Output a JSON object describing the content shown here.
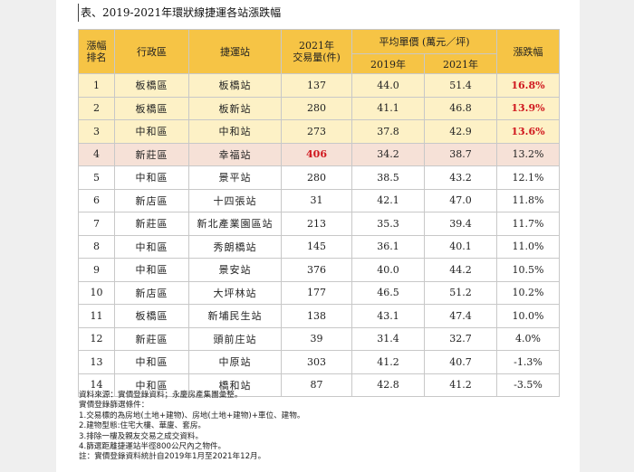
{
  "title": "表、2019-2021年環狀線捷運各站漲跌幅",
  "headers": {
    "rank": "漲幅\n排名",
    "district": "行政區",
    "station": "捷運站",
    "volume": "2021年\n交易量(件)",
    "avg_price": "平均單價 (萬元／坪)",
    "y2019": "2019年",
    "y2021": "2021年",
    "change": "漲跌幅"
  },
  "rows": [
    {
      "rank": "1",
      "district": "板橋區",
      "station": "板橋站",
      "volume": "137",
      "p2019": "44.0",
      "p2021": "51.4",
      "change": "16.8%"
    },
    {
      "rank": "2",
      "district": "板橋區",
      "station": "板新站",
      "volume": "280",
      "p2019": "41.1",
      "p2021": "46.8",
      "change": "13.9%"
    },
    {
      "rank": "3",
      "district": "中和區",
      "station": "中和站",
      "volume": "273",
      "p2019": "37.8",
      "p2021": "42.9",
      "change": "13.6%"
    },
    {
      "rank": "4",
      "district": "新莊區",
      "station": "幸福站",
      "volume": "406",
      "p2019": "34.2",
      "p2021": "38.7",
      "change": "13.2%"
    },
    {
      "rank": "5",
      "district": "中和區",
      "station": "景平站",
      "volume": "280",
      "p2019": "38.5",
      "p2021": "43.2",
      "change": "12.1%"
    },
    {
      "rank": "6",
      "district": "新店區",
      "station": "十四張站",
      "volume": "31",
      "p2019": "42.1",
      "p2021": "47.0",
      "change": "11.8%"
    },
    {
      "rank": "7",
      "district": "新莊區",
      "station": "新北產業園區站",
      "volume": "213",
      "p2019": "35.3",
      "p2021": "39.4",
      "change": "11.7%"
    },
    {
      "rank": "8",
      "district": "中和區",
      "station": "秀朗橋站",
      "volume": "145",
      "p2019": "36.1",
      "p2021": "40.1",
      "change": "11.0%"
    },
    {
      "rank": "9",
      "district": "中和區",
      "station": "景安站",
      "volume": "376",
      "p2019": "40.0",
      "p2021": "44.2",
      "change": "10.5%"
    },
    {
      "rank": "10",
      "district": "新店區",
      "station": "大坪林站",
      "volume": "177",
      "p2019": "46.5",
      "p2021": "51.2",
      "change": "10.2%"
    },
    {
      "rank": "11",
      "district": "板橋區",
      "station": "新埔民生站",
      "volume": "138",
      "p2019": "43.1",
      "p2021": "47.4",
      "change": "10.0%"
    },
    {
      "rank": "12",
      "district": "新莊區",
      "station": "頭前庄站",
      "volume": "39",
      "p2019": "31.4",
      "p2021": "32.7",
      "change": "4.0%"
    },
    {
      "rank": "13",
      "district": "中和區",
      "station": "中原站",
      "volume": "303",
      "p2019": "41.2",
      "p2021": "40.7",
      "change": "-1.3%"
    },
    {
      "rank": "14",
      "district": "中和區",
      "station": "橋和站",
      "volume": "87",
      "p2019": "42.8",
      "p2021": "41.2",
      "change": "-3.5%"
    }
  ],
  "highlight": {
    "yellow_rows": [
      0,
      1,
      2
    ],
    "pink_rows": [
      3
    ],
    "red_change_rows": [
      0,
      1,
      2
    ],
    "red_volume_rows": [
      3
    ]
  },
  "notes": [
    "資料來源：實價登錄資料；永慶房產集團彙整。",
    "實價登錄篩選條件：",
    "1.交易標的為房地(土地+建物)、房地(土地+建物)+車位、建物。",
    "2.建物型態:住宅大樓、華廈、套房。",
    "3.排除一樓及親友交易之成交資料。",
    "4.篩選距離捷運站半徑800公尺內之物件。",
    "註：實價登錄資料統計自2019年1月至2021年12月。"
  ],
  "colors": {
    "header": "#f6c445",
    "yellow_row": "#fdf1c6",
    "pink_row": "#f6e1d7",
    "red_text": "#d0181f"
  }
}
